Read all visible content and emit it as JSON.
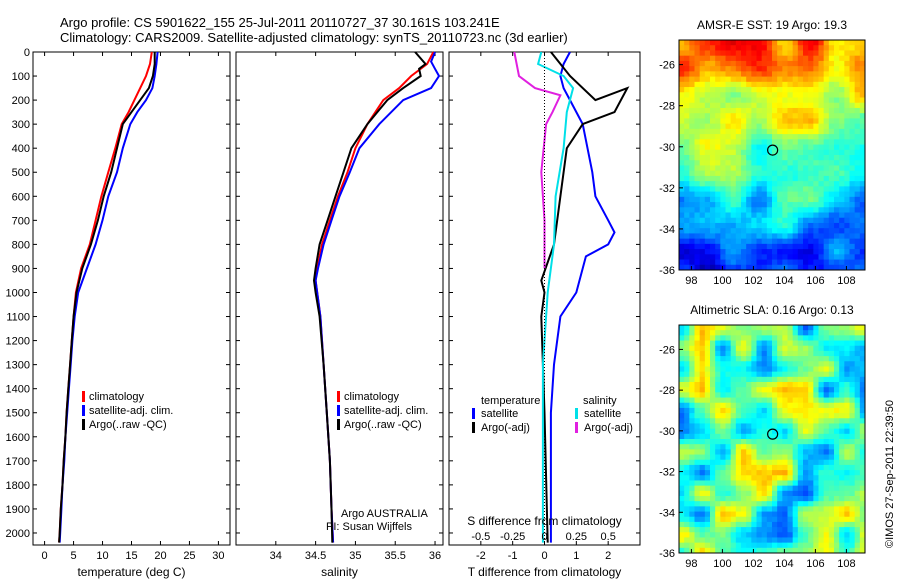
{
  "header": {
    "line1": "Argo profile: CS 5901622_155 25-Jul-2011 20110727_37 30.161S 103.241E",
    "line2": "Climatology: CARS2009. Satellite-adjusted climatology: synTS_20110723.nc (3d earlier)"
  },
  "credit": "©IMOS 27-Sep-2011 22:39:50",
  "colors": {
    "climatology": "#ff0000",
    "satellite": "#0000ff",
    "argo": "#000000",
    "sat_salinity": "#00e0e8",
    "argo_salinity": "#e020e0"
  },
  "depth_ticks": [
    0,
    100,
    200,
    300,
    400,
    500,
    600,
    700,
    800,
    900,
    1000,
    1100,
    1200,
    1300,
    1400,
    1500,
    1600,
    1700,
    1800,
    1900,
    2000
  ],
  "chart_data": [
    {
      "type": "line",
      "xlabel": "temperature (deg C)",
      "xlim": [
        -2,
        32
      ],
      "ylim": [
        0,
        2050
      ],
      "x_ticks": [
        0,
        5,
        10,
        15,
        20,
        25,
        30
      ],
      "legend": [
        "climatology",
        "satellite-adj. clim.",
        "Argo(..raw -QC)"
      ],
      "series": [
        {
          "name": "climatology",
          "color": "#ff0000",
          "points": [
            [
              18.5,
              0
            ],
            [
              18.2,
              50
            ],
            [
              17.5,
              100
            ],
            [
              16.5,
              150
            ],
            [
              15.5,
              200
            ],
            [
              14.5,
              250
            ],
            [
              13.3,
              300
            ],
            [
              12.2,
              400
            ],
            [
              11,
              500
            ],
            [
              9.8,
              600
            ],
            [
              8.8,
              700
            ],
            [
              7.8,
              800
            ],
            [
              6.3,
              900
            ],
            [
              5.4,
              1000
            ],
            [
              5,
              1100
            ],
            [
              4.7,
              1200
            ],
            [
              4.4,
              1300
            ],
            [
              4.1,
              1400
            ],
            [
              3.8,
              1500
            ],
            [
              3.6,
              1600
            ],
            [
              3.3,
              1700
            ],
            [
              3.1,
              1800
            ],
            [
              2.8,
              1900
            ],
            [
              2.6,
              2000
            ],
            [
              2.5,
              2040
            ]
          ]
        },
        {
          "name": "satellite-adj. clim.",
          "color": "#0000ff",
          "points": [
            [
              19.5,
              0
            ],
            [
              19.3,
              50
            ],
            [
              19,
              100
            ],
            [
              18.6,
              150
            ],
            [
              17.5,
              200
            ],
            [
              16,
              250
            ],
            [
              14.8,
              300
            ],
            [
              13.5,
              400
            ],
            [
              12.5,
              500
            ],
            [
              11,
              600
            ],
            [
              10,
              700
            ],
            [
              8.8,
              800
            ],
            [
              7.3,
              900
            ],
            [
              5.8,
              1000
            ],
            [
              5.2,
              1100
            ],
            [
              4.8,
              1200
            ],
            [
              4.5,
              1300
            ],
            [
              4.2,
              1400
            ],
            [
              3.9,
              1500
            ],
            [
              3.6,
              1600
            ],
            [
              3.4,
              1700
            ],
            [
              3.1,
              1800
            ],
            [
              2.9,
              1900
            ],
            [
              2.7,
              2000
            ],
            [
              2.6,
              2040
            ]
          ]
        },
        {
          "name": "Argo(..raw -QC)",
          "color": "#000000",
          "points": [
            [
              19,
              0
            ],
            [
              19,
              50
            ],
            [
              18.7,
              100
            ],
            [
              18,
              150
            ],
            [
              16.5,
              200
            ],
            [
              15,
              250
            ],
            [
              13.5,
              300
            ],
            [
              12.5,
              400
            ],
            [
              11.5,
              500
            ],
            [
              10.2,
              600
            ],
            [
              9.2,
              700
            ],
            [
              8,
              800
            ],
            [
              6.5,
              900
            ],
            [
              5.5,
              1000
            ],
            [
              5,
              1100
            ],
            [
              4.7,
              1200
            ],
            [
              4.4,
              1300
            ],
            [
              4.1,
              1400
            ],
            [
              3.8,
              1500
            ],
            [
              3.6,
              1600
            ],
            [
              3.3,
              1700
            ],
            [
              3.1,
              1800
            ],
            [
              2.8,
              1900
            ],
            [
              2.6,
              2000
            ],
            [
              2.5,
              2040
            ]
          ]
        }
      ]
    },
    {
      "type": "line",
      "xlabel": "salinity",
      "xlim": [
        33.5,
        36.1
      ],
      "ylim": [
        0,
        2050
      ],
      "x_ticks": [
        34,
        34.5,
        35,
        35.5,
        36
      ],
      "x_tick_labels": [
        "34",
        "34.5",
        "35",
        "35.5",
        "36"
      ],
      "legend": [
        "climatology",
        "satellite-adj. clim.",
        "Argo(..raw -QC)"
      ],
      "annotations": [
        "Argo AUSTRALIA",
        "PI: Susan Wijffels"
      ],
      "series": [
        {
          "name": "climatology",
          "color": "#ff0000",
          "points": [
            [
              35.98,
              0
            ],
            [
              35.9,
              50
            ],
            [
              35.7,
              100
            ],
            [
              35.55,
              150
            ],
            [
              35.35,
              200
            ],
            [
              35.15,
              300
            ],
            [
              35,
              400
            ],
            [
              34.9,
              500
            ],
            [
              34.78,
              600
            ],
            [
              34.68,
              700
            ],
            [
              34.58,
              800
            ],
            [
              34.52,
              900
            ],
            [
              34.5,
              950
            ],
            [
              34.52,
              1000
            ],
            [
              34.56,
              1100
            ],
            [
              34.6,
              1300
            ],
            [
              34.64,
              1500
            ],
            [
              34.68,
              1700
            ],
            [
              34.7,
              1900
            ],
            [
              34.72,
              2040
            ]
          ]
        },
        {
          "name": "satellite-adj. clim.",
          "color": "#0000ff",
          "points": [
            [
              36,
              0
            ],
            [
              35.95,
              40
            ],
            [
              36,
              70
            ],
            [
              36.05,
              100
            ],
            [
              35.95,
              150
            ],
            [
              35.6,
              200
            ],
            [
              35.3,
              300
            ],
            [
              35.05,
              400
            ],
            [
              34.93,
              500
            ],
            [
              34.8,
              600
            ],
            [
              34.7,
              700
            ],
            [
              34.6,
              800
            ],
            [
              34.53,
              900
            ],
            [
              34.5,
              950
            ],
            [
              34.52,
              1000
            ],
            [
              34.56,
              1100
            ],
            [
              34.6,
              1300
            ],
            [
              34.64,
              1500
            ],
            [
              34.68,
              1700
            ],
            [
              34.7,
              1900
            ],
            [
              34.72,
              2040
            ]
          ]
        },
        {
          "name": "Argo(..raw -QC)",
          "color": "#000000",
          "points": [
            [
              35.75,
              0
            ],
            [
              35.88,
              50
            ],
            [
              35.8,
              70
            ],
            [
              35.82,
              100
            ],
            [
              35.6,
              150
            ],
            [
              35.4,
              200
            ],
            [
              35.15,
              300
            ],
            [
              34.95,
              400
            ],
            [
              34.85,
              500
            ],
            [
              34.75,
              600
            ],
            [
              34.65,
              700
            ],
            [
              34.55,
              800
            ],
            [
              34.5,
              900
            ],
            [
              34.48,
              950
            ],
            [
              34.5,
              1000
            ],
            [
              34.55,
              1100
            ],
            [
              34.6,
              1300
            ],
            [
              34.64,
              1500
            ],
            [
              34.68,
              1700
            ],
            [
              34.7,
              1900
            ],
            [
              34.71,
              2040
            ]
          ]
        }
      ]
    },
    {
      "type": "line",
      "xlabel": "T difference from climatology",
      "xlabel_top": "S difference from climatology",
      "xlim": [
        -3,
        3
      ],
      "ylim": [
        0,
        2050
      ],
      "x_ticks": [
        -2,
        -1,
        0,
        1,
        2
      ],
      "x_tick_labels": [
        "-2",
        "-1",
        "0",
        "1",
        "2"
      ],
      "s_ticks": [
        -0.5,
        -0.25,
        0,
        0.25,
        0.5
      ],
      "s_tick_labels": [
        "-0.5",
        "-0.25",
        "0",
        "0.25",
        "0.5"
      ],
      "legend_titles": [
        "temperature",
        "salinity"
      ],
      "legend": [
        "satellite",
        "Argo(-adj)",
        "satellite",
        "Argo(-adj)"
      ],
      "series": [
        {
          "name": "satellite",
          "color": "#0000ff",
          "points": [
            [
              0.8,
              0
            ],
            [
              0.6,
              50
            ],
            [
              0.5,
              100
            ],
            [
              0.6,
              150
            ],
            [
              0.8,
              200
            ],
            [
              1.2,
              300
            ],
            [
              1.5,
              500
            ],
            [
              1.6,
              600
            ],
            [
              2.0,
              700
            ],
            [
              2.2,
              750
            ],
            [
              2.0,
              800
            ],
            [
              1.3,
              850
            ],
            [
              1.0,
              1000
            ],
            [
              0.5,
              1100
            ],
            [
              0.3,
              1300
            ],
            [
              0.2,
              1500
            ],
            [
              0.2,
              1800
            ],
            [
              0.2,
              2040
            ]
          ]
        },
        {
          "name": "Argo(-adj)",
          "color": "#000000",
          "points": [
            [
              0.2,
              0
            ],
            [
              0.8,
              100
            ],
            [
              1.6,
              200
            ],
            [
              2.6,
              150
            ],
            [
              2.2,
              250
            ],
            [
              1.2,
              300
            ],
            [
              0.7,
              400
            ],
            [
              0.5,
              600
            ],
            [
              0.3,
              800
            ],
            [
              -0.1,
              950
            ],
            [
              0.0,
              1000
            ],
            [
              -0.1,
              1100
            ],
            [
              0.0,
              1500
            ],
            [
              0.1,
              2040
            ]
          ]
        },
        {
          "name": "satellite",
          "color": "#00e0e8",
          "points": [
            [
              -0.1,
              0
            ],
            [
              -0.2,
              50
            ],
            [
              0.6,
              100
            ],
            [
              0.9,
              150
            ],
            [
              0.7,
              250
            ],
            [
              0.6,
              400
            ],
            [
              0.35,
              600
            ],
            [
              0.3,
              800
            ],
            [
              0.1,
              1000
            ],
            [
              -0.05,
              1300
            ],
            [
              -0.05,
              1700
            ],
            [
              -0.05,
              2040
            ]
          ]
        },
        {
          "name": "Argo(-adj)",
          "color": "#e020e0",
          "points": [
            [
              -0.95,
              0
            ],
            [
              -0.8,
              100
            ],
            [
              -0.3,
              150
            ],
            [
              0.5,
              180
            ],
            [
              0.25,
              250
            ],
            [
              0.05,
              300
            ],
            [
              -0.1,
              500
            ],
            [
              0.0,
              700
            ],
            [
              0.0,
              900
            ]
          ]
        }
      ]
    },
    {
      "type": "heatmap",
      "title": "AMSR-E SST: 19 Argo: 19.3",
      "xlim": [
        97.2,
        109.2
      ],
      "ylim": [
        -36,
        -24.8
      ],
      "x_ticks": [
        98,
        100,
        102,
        104,
        106,
        108
      ],
      "y_ticks": [
        -26,
        -28,
        -30,
        -32,
        -34,
        -36
      ],
      "marker": [
        103.241,
        -30.161
      ]
    },
    {
      "type": "heatmap",
      "title": "Altimetric SLA: 0.16 Argo: 0.13",
      "xlim": [
        97.2,
        109.2
      ],
      "ylim": [
        -36,
        -24.8
      ],
      "x_ticks": [
        98,
        100,
        102,
        104,
        106,
        108
      ],
      "y_ticks": [
        -26,
        -28,
        -30,
        -32,
        -34,
        -36
      ],
      "marker": [
        103.241,
        -30.161
      ]
    }
  ]
}
